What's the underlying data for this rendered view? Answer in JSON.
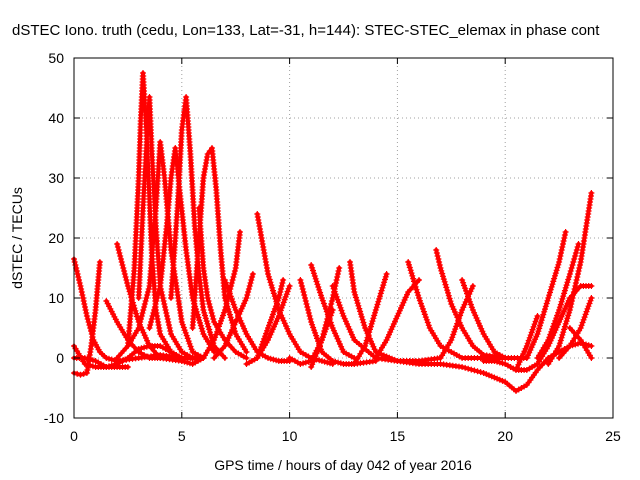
{
  "chart_data": {
    "type": "scatter",
    "title": "dSTEC Iono. truth (cedu, Lon=133, Lat=-31, h=144): STEC-STEC_elemax in phase cont",
    "xlabel": "GPS time / hours of day 042 of year 2016",
    "ylabel": "dSTEC  / TECUs",
    "xlim": [
      0,
      25
    ],
    "ylim": [
      -10,
      50
    ],
    "xticks": [
      0,
      5,
      10,
      15,
      20,
      25
    ],
    "yticks": [
      -10,
      0,
      10,
      20,
      30,
      40,
      50
    ],
    "grid": true,
    "marker": "plus",
    "color": "#ff0000",
    "series": [
      {
        "x": [
          0.0,
          0.5,
          1.0,
          1.5,
          2.0,
          2.5,
          3.0,
          3.5,
          4.0,
          4.5,
          5.0
        ],
        "y": [
          2,
          -1,
          -1.5,
          -1.5,
          -1,
          0,
          1.5,
          2,
          2,
          1,
          0
        ]
      },
      {
        "x": [
          0.0,
          0.3,
          0.6,
          0.9,
          1.2,
          1.5,
          2.0,
          3.0,
          4.0,
          5.0
        ],
        "y": [
          16.5,
          12,
          7,
          3,
          1,
          0,
          -0.5,
          0,
          0.5,
          0
        ]
      },
      {
        "x": [
          0.0,
          0.3,
          0.6,
          0.8,
          1.0,
          1.2
        ],
        "y": [
          -2.5,
          -2.8,
          -2.5,
          2,
          8,
          16
        ]
      },
      {
        "x": [
          0.0,
          0.5,
          1.0,
          1.5,
          2.0,
          2.5
        ],
        "y": [
          0,
          0,
          -0.5,
          -1.5,
          -1.5,
          -1.5
        ]
      },
      {
        "x": [
          1.5,
          2.0,
          2.5,
          3.0,
          3.5,
          4.0
        ],
        "y": [
          9.5,
          6,
          3,
          1,
          0,
          0
        ]
      },
      {
        "x": [
          2.0,
          2.5,
          3.0,
          3.5,
          4.0,
          5.0
        ],
        "y": [
          19,
          12,
          6,
          2,
          0,
          -0.5
        ]
      },
      {
        "x": [
          2.0,
          2.5,
          2.8,
          3.0,
          3.1,
          3.2,
          3.4,
          3.6,
          3.8,
          4.0,
          4.5,
          5.0,
          6.0
        ],
        "y": [
          0,
          2,
          15,
          30,
          40,
          47.5,
          35,
          18,
          8,
          4,
          1,
          0,
          0
        ]
      },
      {
        "x": [
          3.0,
          3.2,
          3.4,
          3.5,
          3.6,
          3.8,
          4.0,
          4.5,
          5.0,
          5.5
        ],
        "y": [
          10,
          25,
          38,
          43.5,
          35,
          22,
          12,
          4,
          1,
          0
        ]
      },
      {
        "x": [
          2.5,
          3.0,
          3.5,
          3.8,
          4.0,
          4.2,
          4.5,
          5.0,
          5.5,
          6.0
        ],
        "y": [
          2,
          5,
          12,
          25,
          36,
          30,
          18,
          6,
          1,
          0
        ]
      },
      {
        "x": [
          3.5,
          4.0,
          4.3,
          4.5,
          4.7,
          4.9,
          5.2,
          5.5,
          6.0,
          6.5
        ],
        "y": [
          5,
          12,
          22,
          30,
          35,
          28,
          18,
          10,
          4,
          1
        ]
      },
      {
        "x": [
          4.5,
          4.8,
          5.0,
          5.2,
          5.4,
          5.6,
          5.8,
          6.0,
          6.5,
          7.0
        ],
        "y": [
          10,
          25,
          38,
          43.5,
          34,
          22,
          14,
          8,
          2,
          0
        ]
      },
      {
        "x": [
          5.5,
          5.8,
          6.0,
          6.2,
          6.4,
          6.6,
          6.8,
          7.0,
          7.5,
          8.0
        ],
        "y": [
          5,
          20,
          30,
          34,
          35,
          28,
          18,
          10,
          4,
          1
        ]
      },
      {
        "x": [
          5.8,
          6.0,
          6.2,
          6.5,
          7.0,
          7.5,
          8.0
        ],
        "y": [
          25,
          15,
          10,
          6,
          3,
          1,
          0
        ]
      },
      {
        "x": [
          5.0,
          5.5,
          6.0,
          6.5,
          7.0,
          7.5,
          7.7
        ],
        "y": [
          -0.5,
          -1,
          0,
          3,
          8,
          15,
          21
        ]
      },
      {
        "x": [
          7.0,
          7.5,
          8.0,
          8.5,
          9.0,
          9.5,
          10.0
        ],
        "y": [
          13,
          8,
          4,
          1,
          0,
          -0.5,
          -0.5
        ]
      },
      {
        "x": [
          6.5,
          7.0,
          7.5,
          8.0,
          8.3
        ],
        "y": [
          0,
          2,
          6,
          10,
          14
        ]
      },
      {
        "x": [
          8.5,
          8.8,
          9.0,
          9.5,
          10.0,
          10.5,
          11.0,
          11.5,
          12.0
        ],
        "y": [
          24,
          18,
          14,
          8,
          4,
          1,
          0,
          -0.5,
          -1
        ]
      },
      {
        "x": [
          8.0,
          8.5,
          9.0,
          9.5,
          10.0
        ],
        "y": [
          -1,
          0,
          3,
          7,
          12
        ]
      },
      {
        "x": [
          8.5,
          9.0,
          9.5,
          9.7
        ],
        "y": [
          0,
          5,
          10,
          13
        ]
      },
      {
        "x": [
          10.5,
          11.0,
          11.5,
          12.0,
          12.5,
          13.0,
          14.0
        ],
        "y": [
          13,
          6,
          1,
          -0.5,
          -1,
          -1,
          -0.5
        ]
      },
      {
        "x": [
          10.0,
          10.5,
          11.0,
          11.5,
          12.0
        ],
        "y": [
          0,
          -1,
          -0.5,
          3,
          8
        ]
      },
      {
        "x": [
          11.0,
          11.5,
          12.0,
          12.3
        ],
        "y": [
          -1.5,
          3,
          10,
          15
        ]
      },
      {
        "x": [
          11.0,
          11.5,
          12.0,
          12.5,
          13.0
        ],
        "y": [
          15.5,
          10,
          5,
          1,
          0
        ]
      },
      {
        "x": [
          12.0,
          12.5,
          13.0,
          14.0,
          15.0,
          16.0
        ],
        "y": [
          12,
          7,
          3,
          0,
          -0.5,
          -0.5
        ]
      },
      {
        "x": [
          12.8,
          13.0,
          13.5,
          14.0,
          15.0,
          16.0,
          17.0
        ],
        "y": [
          16,
          11,
          5,
          1,
          -0.5,
          -0.5,
          0
        ]
      },
      {
        "x": [
          13.0,
          13.5,
          14.0,
          14.5
        ],
        "y": [
          -1,
          2,
          8,
          14
        ]
      },
      {
        "x": [
          14.0,
          14.5,
          15.0,
          15.5,
          16.0
        ],
        "y": [
          0,
          3,
          7,
          11,
          13
        ]
      },
      {
        "x": [
          15.5,
          16.0,
          16.5,
          17.0,
          18.0,
          19.0,
          20.0
        ],
        "y": [
          16,
          10,
          5,
          2,
          0,
          0,
          0
        ]
      },
      {
        "x": [
          16.8,
          17.0,
          17.5,
          18.0,
          18.5,
          19.0,
          20.0,
          21.0
        ],
        "y": [
          18,
          15,
          9,
          5,
          2,
          0.5,
          0,
          0
        ]
      },
      {
        "x": [
          17.0,
          17.5,
          18.0,
          18.5
        ],
        "y": [
          0,
          3,
          8,
          12
        ]
      },
      {
        "x": [
          18.0,
          18.5,
          19.0,
          19.5,
          20.0
        ],
        "y": [
          13,
          8,
          4,
          1,
          0
        ]
      },
      {
        "x": [
          15.0,
          16.0,
          17.0,
          18.0,
          19.0,
          20.0,
          20.5,
          21.0,
          21.5,
          22.0
        ],
        "y": [
          -0.5,
          -1,
          -1,
          -1.5,
          -2.5,
          -4,
          -5.5,
          -4.5,
          -2,
          0
        ]
      },
      {
        "x": [
          19.0,
          19.5,
          20.0,
          20.5,
          21.0,
          21.5
        ],
        "y": [
          -0.5,
          -0.5,
          -1,
          -2,
          2,
          7
        ]
      },
      {
        "x": [
          20.5,
          21.0,
          21.5,
          22.0,
          22.5,
          23.0,
          23.5,
          24.0
        ],
        "y": [
          -2,
          -2,
          -1,
          2,
          6,
          10,
          12,
          12
        ]
      },
      {
        "x": [
          21.0,
          21.5,
          22.0,
          22.5,
          22.8
        ],
        "y": [
          0,
          4,
          10,
          16,
          21
        ]
      },
      {
        "x": [
          21.5,
          22.0,
          22.5,
          23.0,
          23.4
        ],
        "y": [
          0,
          3,
          8,
          14,
          19
        ]
      },
      {
        "x": [
          22.0,
          22.5,
          23.0,
          23.5,
          24.0
        ],
        "y": [
          -1,
          2,
          8,
          16,
          27.5
        ]
      },
      {
        "x": [
          22.5,
          23.0,
          23.5,
          24.0
        ],
        "y": [
          0,
          2,
          5,
          10
        ]
      },
      {
        "x": [
          23.0,
          23.5,
          24.0
        ],
        "y": [
          5,
          3,
          0
        ]
      },
      {
        "x": [
          22.0,
          22.5,
          23.0,
          23.5,
          24.0
        ],
        "y": [
          0,
          1,
          2,
          2.5,
          2
        ]
      }
    ]
  }
}
